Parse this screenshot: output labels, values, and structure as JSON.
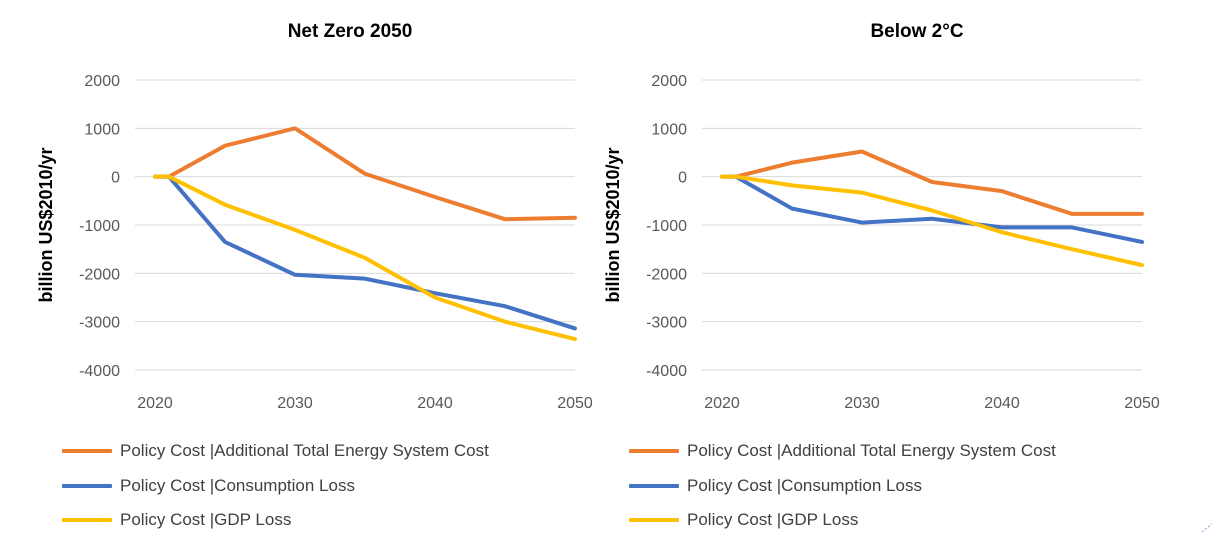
{
  "chart_data": [
    {
      "type": "line",
      "title": "Net Zero 2050",
      "ylabel": "billion US$2010/yr",
      "xlabel": "",
      "x": [
        2020,
        2021,
        2025,
        2030,
        2035,
        2040,
        2045,
        2050
      ],
      "xticks": [
        2020,
        2030,
        2040,
        2050
      ],
      "yticks": [
        2000,
        1000,
        0,
        -1000,
        -2000,
        -3000,
        -4000
      ],
      "xlim": [
        2020,
        2050
      ],
      "ylim": [
        -4000,
        2000
      ],
      "grid": "horizontal",
      "legend": "bottom",
      "series": [
        {
          "name": "Policy Cost |Additional Total Energy System Cost",
          "color": "#ED7D31",
          "values": [
            0,
            0,
            640,
            1000,
            60,
            -420,
            -880,
            -850
          ]
        },
        {
          "name": "Policy Cost |Consumption Loss",
          "color": "#4472C4",
          "values": [
            0,
            0,
            -1350,
            -2030,
            -2110,
            -2410,
            -2680,
            -3140
          ]
        },
        {
          "name": "Policy Cost |GDP Loss",
          "color": "#FFC000",
          "values": [
            0,
            0,
            -580,
            -1100,
            -1680,
            -2500,
            -3000,
            -3360
          ]
        }
      ]
    },
    {
      "type": "line",
      "title": "Below 2°C",
      "ylabel": "billion US$2010/yr",
      "xlabel": "",
      "x": [
        2020,
        2021,
        2025,
        2030,
        2035,
        2040,
        2045,
        2050
      ],
      "xticks": [
        2020,
        2030,
        2040,
        2050
      ],
      "yticks": [
        2000,
        1000,
        0,
        -1000,
        -2000,
        -3000,
        -4000
      ],
      "xlim": [
        2020,
        2050
      ],
      "ylim": [
        -4000,
        2000
      ],
      "grid": "horizontal",
      "legend": "bottom",
      "series": [
        {
          "name": "Policy Cost |Additional Total Energy System Cost",
          "color": "#ED7D31",
          "values": [
            0,
            0,
            290,
            520,
            -110,
            -300,
            -770,
            -770
          ]
        },
        {
          "name": "Policy Cost |Consumption Loss",
          "color": "#4472C4",
          "values": [
            0,
            0,
            -660,
            -950,
            -870,
            -1050,
            -1050,
            -1350
          ]
        },
        {
          "name": "Policy Cost |GDP Loss",
          "color": "#FFC000",
          "values": [
            0,
            0,
            -180,
            -330,
            -700,
            -1150,
            -1500,
            -1830
          ]
        }
      ]
    }
  ]
}
